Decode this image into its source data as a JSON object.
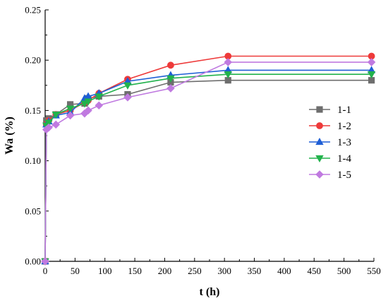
{
  "chart_data": {
    "type": "line",
    "title": "",
    "xlabel": "t (h)",
    "ylabel": "Wa (%)",
    "xlim": [
      0,
      550
    ],
    "ylim": [
      0.0,
      0.25
    ],
    "xticks": [
      0,
      50,
      100,
      150,
      200,
      250,
      300,
      350,
      400,
      450,
      500,
      550
    ],
    "yticks": [
      0.0,
      0.05,
      0.1,
      0.15,
      0.2,
      0.25
    ],
    "xtick_labels": [
      "0",
      "50",
      "100",
      "150",
      "200",
      "250",
      "300",
      "350",
      "400",
      "450",
      "500",
      "550"
    ],
    "ytick_labels": [
      "0.00",
      "0.05",
      "0.10",
      "0.15",
      "0.20",
      "0.25"
    ],
    "grid": false,
    "legend_position": "right",
    "series": [
      {
        "name": "1-1",
        "color": "#6e6e6e",
        "marker": "square",
        "x": [
          0,
          2,
          6,
          18,
          42,
          66,
          72,
          90,
          138,
          210,
          306,
          546
        ],
        "y": [
          0.0,
          0.14,
          0.142,
          0.146,
          0.156,
          0.157,
          0.162,
          0.164,
          0.166,
          0.178,
          0.18,
          0.18
        ]
      },
      {
        "name": "1-2",
        "color": "#ee3a3a",
        "marker": "circle",
        "x": [
          0,
          2,
          6,
          18,
          42,
          66,
          72,
          90,
          138,
          210,
          306,
          546
        ],
        "y": [
          0.0,
          0.136,
          0.14,
          0.146,
          0.15,
          0.158,
          0.16,
          0.167,
          0.181,
          0.195,
          0.204,
          0.204
        ]
      },
      {
        "name": "1-3",
        "color": "#1f5fd6",
        "marker": "triangle-up",
        "x": [
          0,
          2,
          6,
          18,
          42,
          66,
          72,
          90,
          138,
          210,
          306,
          546
        ],
        "y": [
          0.0,
          0.136,
          0.139,
          0.145,
          0.148,
          0.162,
          0.164,
          0.167,
          0.179,
          0.185,
          0.19,
          0.19
        ]
      },
      {
        "name": "1-4",
        "color": "#22b24c",
        "marker": "triangle-down",
        "x": [
          0,
          2,
          6,
          18,
          42,
          66,
          72,
          90,
          138,
          210,
          306,
          546
        ],
        "y": [
          0.0,
          0.135,
          0.138,
          0.146,
          0.152,
          0.157,
          0.159,
          0.164,
          0.175,
          0.182,
          0.186,
          0.186
        ]
      },
      {
        "name": "1-5",
        "color": "#c07ae0",
        "marker": "diamond",
        "x": [
          0,
          2,
          6,
          18,
          42,
          66,
          72,
          90,
          138,
          210,
          306,
          546
        ],
        "y": [
          0.0,
          0.131,
          0.133,
          0.136,
          0.145,
          0.147,
          0.15,
          0.155,
          0.163,
          0.172,
          0.198,
          0.198
        ]
      }
    ]
  }
}
